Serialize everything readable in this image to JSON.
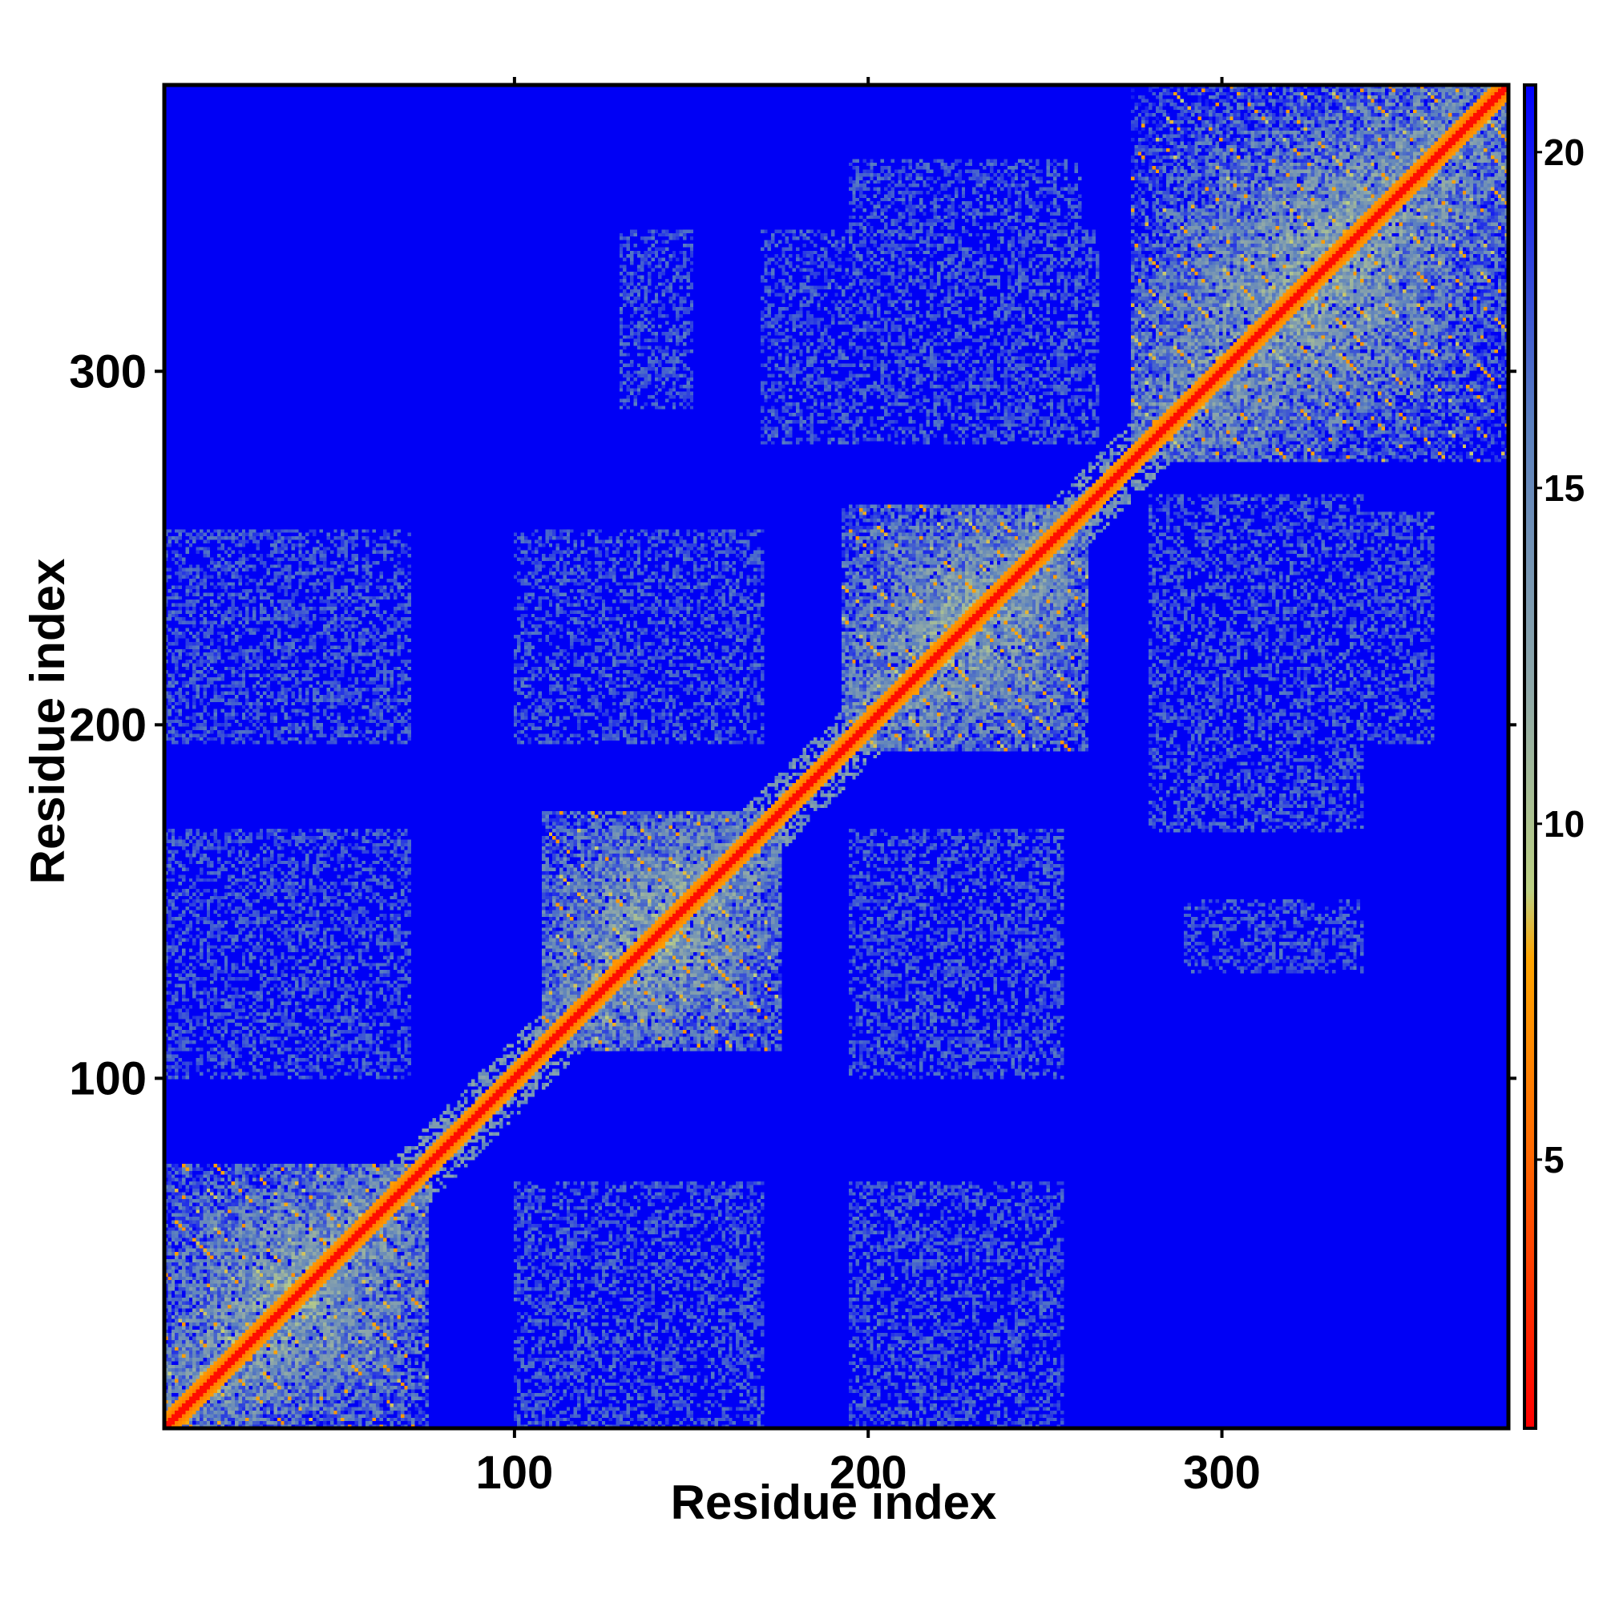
{
  "chart_data": {
    "type": "heatmap",
    "title": "",
    "xlabel": "Residue index",
    "ylabel": "Residue index",
    "xlim": [
      1,
      381
    ],
    "ylim": [
      1,
      381
    ],
    "x_ticks": [
      100,
      200,
      300
    ],
    "y_ticks": [
      100,
      200,
      300
    ],
    "colorbar": {
      "range": [
        1,
        21
      ],
      "ticks": [
        5,
        10,
        15,
        20
      ],
      "stops": [
        {
          "value": 1,
          "color": "#ff0000"
        },
        {
          "value": 5,
          "color": "#ff6600"
        },
        {
          "value": 8,
          "color": "#ffa500"
        },
        {
          "value": 9,
          "color": "#bdd183"
        },
        {
          "value": 12,
          "color": "#8fa8a8"
        },
        {
          "value": 16,
          "color": "#5a7fbf"
        },
        {
          "value": 21,
          "color": "#0000ff"
        }
      ],
      "cutoff": 20,
      "background_color": "#0000f5"
    },
    "domains": [
      {
        "start": 1,
        "end": 75
      },
      {
        "start": 108,
        "end": 175
      },
      {
        "start": 193,
        "end": 262
      },
      {
        "start": 275,
        "end": 381
      }
    ],
    "inter_domain_contact_regions": [
      {
        "x": [
          1,
          70
        ],
        "y": [
          195,
          255
        ]
      },
      {
        "x": [
          1,
          70
        ],
        "y": [
          100,
          170
        ]
      },
      {
        "x": [
          100,
          170
        ],
        "y": [
          10,
          70
        ]
      },
      {
        "x": [
          110,
          170
        ],
        "y": [
          195,
          255
        ]
      },
      {
        "x": [
          130,
          150
        ],
        "y": [
          290,
          340
        ]
      },
      {
        "x": [
          195,
          255
        ],
        "y": [
          10,
          70
        ]
      },
      {
        "x": [
          195,
          255
        ],
        "y": [
          100,
          170
        ]
      },
      {
        "x": [
          170,
          265
        ],
        "y": [
          280,
          340
        ]
      },
      {
        "x": [
          280,
          360
        ],
        "y": [
          195,
          260
        ]
      },
      {
        "x": [
          290,
          340
        ],
        "y": [
          130,
          145
        ]
      }
    ]
  }
}
